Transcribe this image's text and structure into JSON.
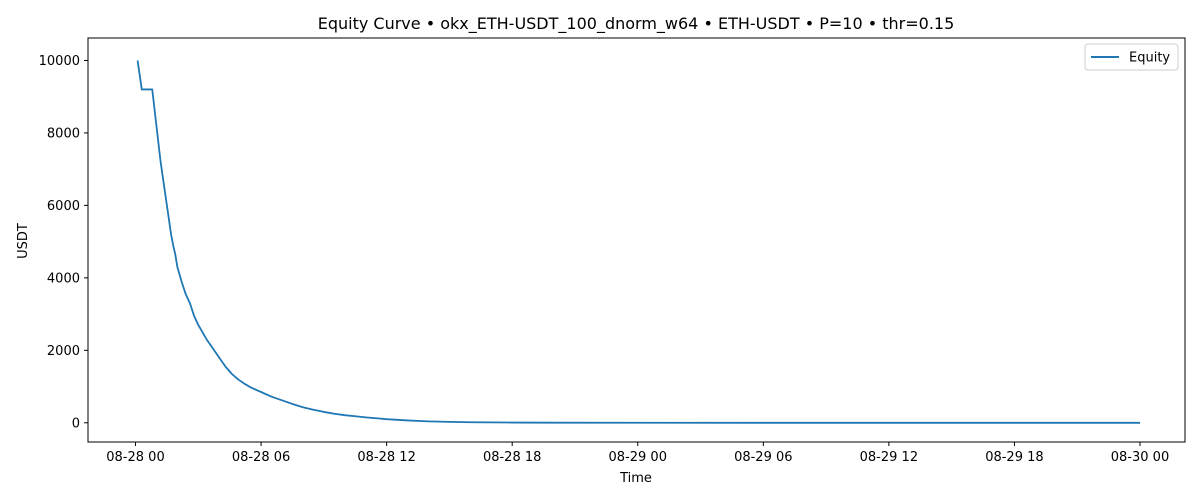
{
  "chart_data": {
    "type": "line",
    "title": "Equity Curve • okx_ETH-USDT_100_dnorm_w64 • ETH-USDT • P=10 • thr=0.15",
    "xlabel": "Time",
    "ylabel": "USDT",
    "x_unit": "hours from 2025-08-28 00:00",
    "xlim": [
      -2.27,
      50.15
    ],
    "ylim": [
      -530,
      10620
    ],
    "x_ticks": [
      {
        "value": 0,
        "label": "08-28 00"
      },
      {
        "value": 6,
        "label": "08-28 06"
      },
      {
        "value": 12,
        "label": "08-28 12"
      },
      {
        "value": 18,
        "label": "08-28 18"
      },
      {
        "value": 24,
        "label": "08-29 00"
      },
      {
        "value": 30,
        "label": "08-29 06"
      },
      {
        "value": 36,
        "label": "08-29 12"
      },
      {
        "value": 42,
        "label": "08-29 18"
      },
      {
        "value": 48,
        "label": "08-30 00"
      }
    ],
    "y_ticks": [
      {
        "value": 0,
        "label": "0"
      },
      {
        "value": 2000,
        "label": "2000"
      },
      {
        "value": 4000,
        "label": "4000"
      },
      {
        "value": 6000,
        "label": "6000"
      },
      {
        "value": 8000,
        "label": "8000"
      },
      {
        "value": 10000,
        "label": "10000"
      }
    ],
    "legend": {
      "placement": "top-right"
    },
    "grid": false,
    "series": [
      {
        "name": "Equity",
        "color": "#1f77b4",
        "x": [
          0.1,
          0.2,
          0.3,
          0.4,
          0.5,
          0.6,
          0.7,
          0.8,
          0.9,
          1.0,
          1.1,
          1.2,
          1.3,
          1.4,
          1.5,
          1.6,
          1.7,
          1.8,
          1.9,
          2.0,
          2.2,
          2.4,
          2.6,
          2.8,
          3.0,
          3.2,
          3.4,
          3.7,
          4.0,
          4.3,
          4.6,
          4.9,
          5.2,
          5.5,
          5.8,
          6.0,
          6.5,
          7.0,
          7.5,
          8.0,
          8.5,
          9.0,
          9.5,
          10.0,
          10.5,
          11.0,
          12.0,
          13.0,
          14.0,
          15.0,
          16.0,
          18.0,
          20.0,
          24.0,
          30.0,
          36.0,
          42.0,
          48.0
        ],
        "y": [
          10000,
          9600,
          9200,
          9200,
          9200,
          9200,
          9200,
          9200,
          8700,
          8200,
          7700,
          7200,
          6800,
          6400,
          6000,
          5600,
          5200,
          4900,
          4650,
          4300,
          3900,
          3550,
          3300,
          2950,
          2700,
          2500,
          2300,
          2050,
          1800,
          1550,
          1350,
          1200,
          1080,
          980,
          900,
          850,
          720,
          620,
          520,
          430,
          360,
          300,
          250,
          210,
          180,
          150,
          100,
          65,
          40,
          25,
          15,
          7,
          3,
          1,
          0,
          0,
          0,
          0
        ]
      }
    ]
  }
}
